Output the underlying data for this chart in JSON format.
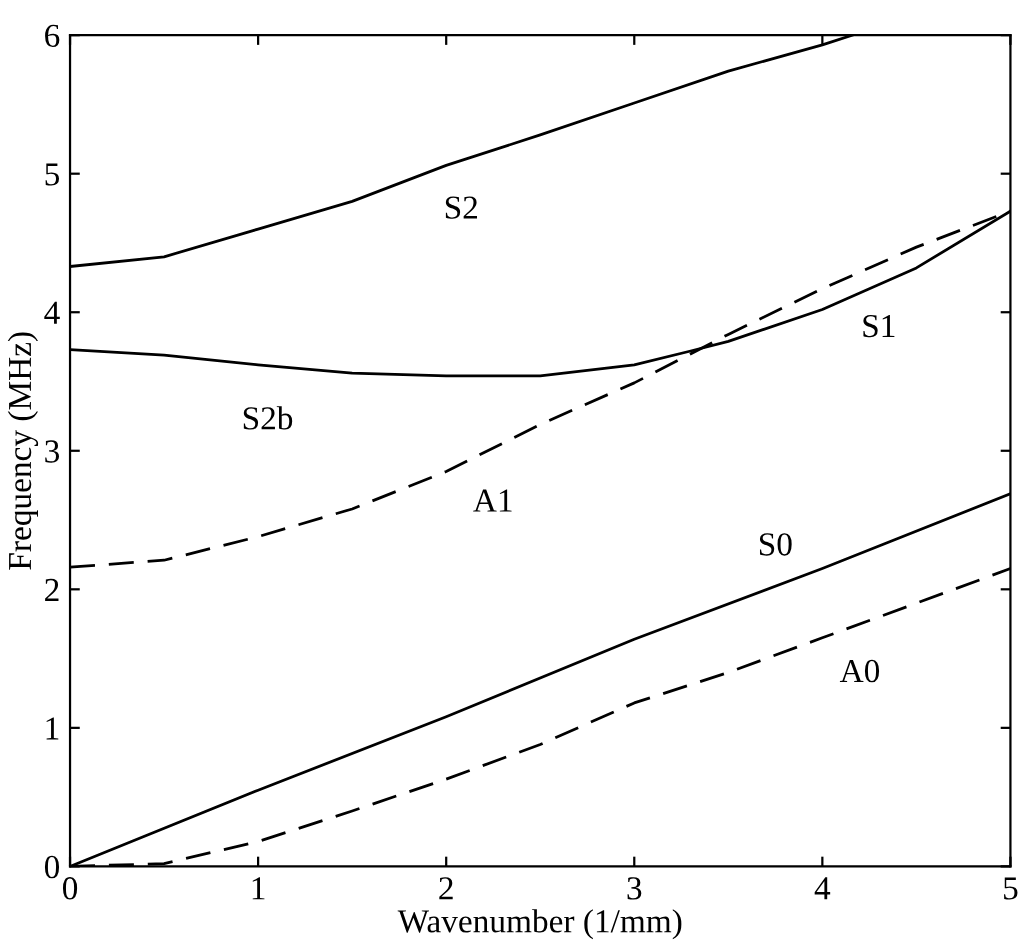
{
  "chart_data": {
    "type": "line",
    "xlabel": "Wavenumber (1/mm)",
    "ylabel": "Frequency (MHz)",
    "xlim": [
      0,
      5
    ],
    "ylim": [
      0,
      6
    ],
    "xticks": [
      0,
      1,
      2,
      3,
      4,
      5
    ],
    "yticks": [
      0,
      1,
      2,
      3,
      4,
      5,
      6
    ],
    "grid": false,
    "legend": false,
    "marker": "none",
    "series": [
      {
        "name": "S2",
        "color": "#000000",
        "line_style": "solid",
        "x": [
          0,
          0.5,
          1,
          1.5,
          2,
          2.5,
          3,
          3.5,
          4,
          4.16
        ],
        "values": [
          4.33,
          4.4,
          4.6,
          4.8,
          5.06,
          5.28,
          5.51,
          5.74,
          5.93,
          6
        ]
      },
      {
        "color": "#000000",
        "line_style": "solid",
        "x": [
          0,
          0.5,
          1,
          1.5,
          2,
          2.5,
          3,
          3.3,
          3.5,
          4,
          4.5,
          5
        ],
        "values": [
          3.73,
          3.69,
          3.62,
          3.56,
          3.54,
          3.54,
          3.62,
          3.72,
          3.79,
          4.02,
          4.32,
          4.73
        ]
      },
      {
        "name": "A1",
        "color": "#000000",
        "line_style": "dashed",
        "x": [
          0,
          0.5,
          1,
          1.5,
          2,
          2.5,
          3,
          3.5,
          4,
          4.5,
          5
        ],
        "values": [
          2.16,
          2.21,
          2.38,
          2.58,
          2.85,
          3.19,
          3.49,
          3.84,
          4.17,
          4.47,
          4.73
        ]
      },
      {
        "name": "S0",
        "color": "#000000",
        "line_style": "solid",
        "x": [
          0,
          1,
          2,
          3,
          4,
          5
        ],
        "values": [
          0,
          0.55,
          1.08,
          1.64,
          2.15,
          2.69
        ]
      },
      {
        "name": "A0",
        "color": "#000000",
        "line_style": "dashed",
        "x": [
          0,
          0.5,
          1,
          1.5,
          2,
          2.5,
          3,
          3.5,
          4,
          4.5,
          5
        ],
        "values": [
          0,
          0.02,
          0.18,
          0.4,
          0.63,
          0.88,
          1.18,
          1.4,
          1.65,
          1.9,
          2.15
        ]
      }
    ],
    "annotations": [
      "S2b",
      "S1"
    ]
  }
}
